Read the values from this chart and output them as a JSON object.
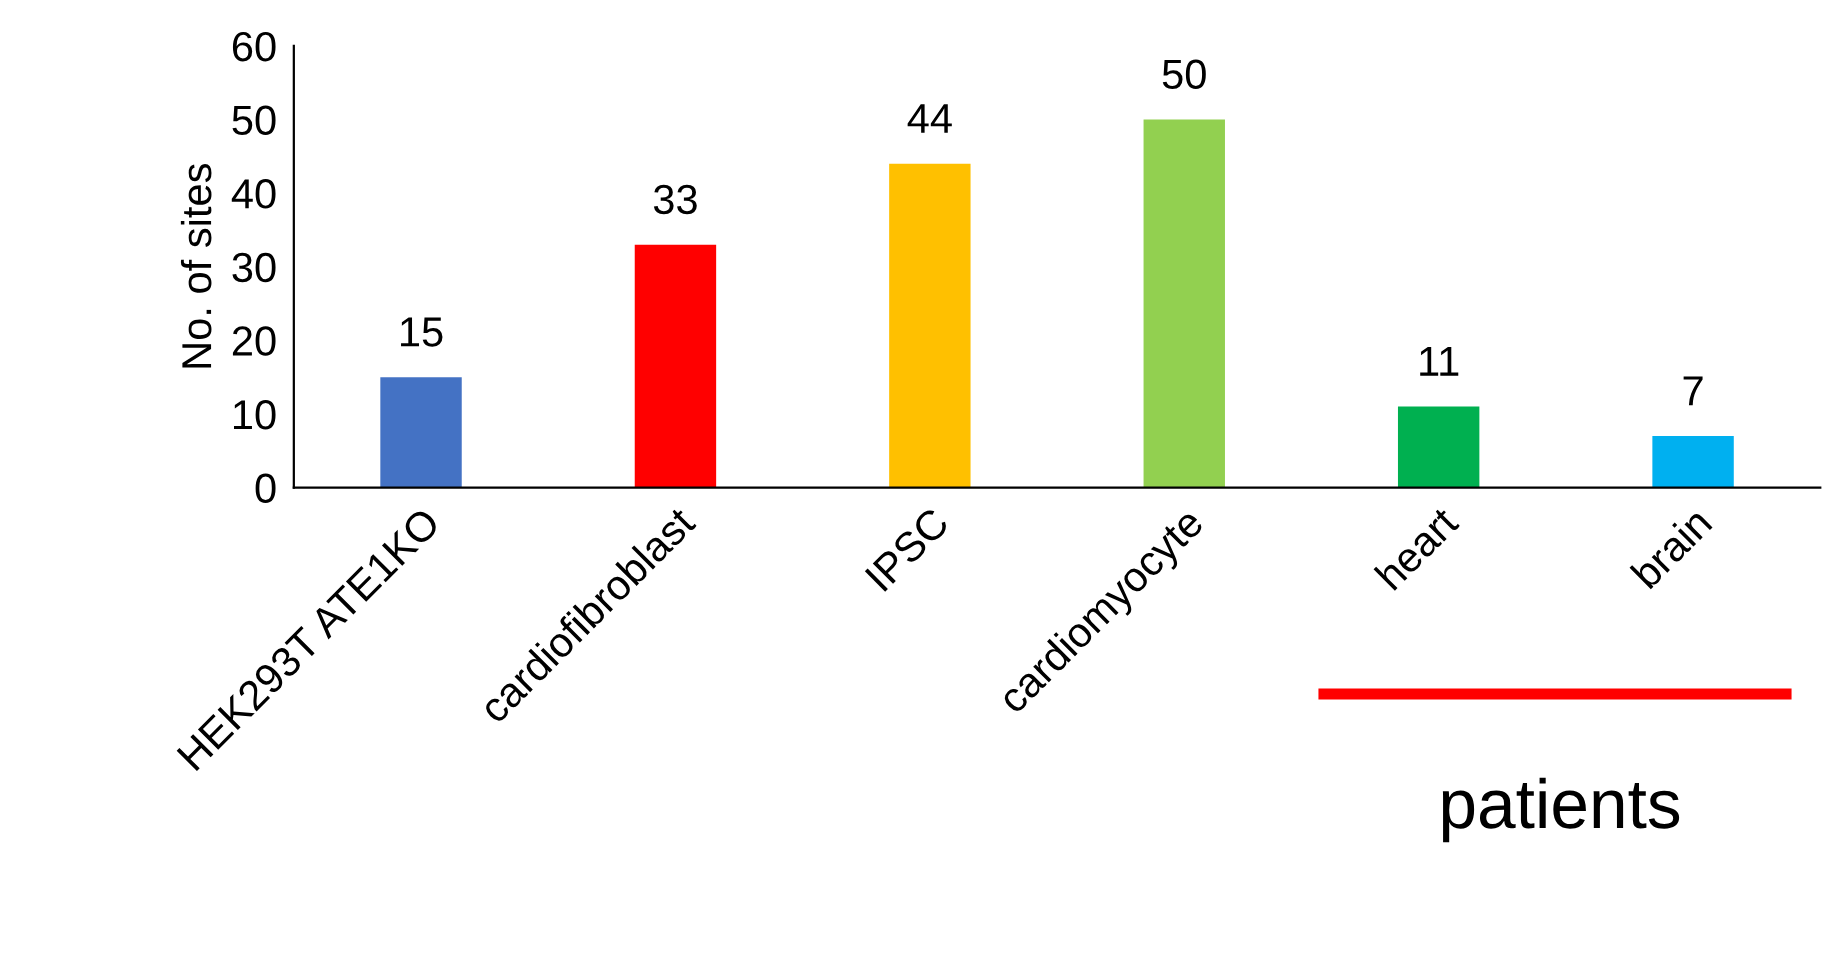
{
  "chart_data": {
    "type": "bar",
    "ylabel": "No. of sites",
    "categories": [
      "HEK293T ATE1KO",
      "cardiofibroblast",
      "IPSC",
      "cardiomyocyte",
      "heart",
      "brain"
    ],
    "values": [
      15,
      33,
      44,
      50,
      11,
      7
    ],
    "colors": [
      "#4472c4",
      "#ff0000",
      "#ffc000",
      "#92d050",
      "#00b050",
      "#00b0f0"
    ],
    "ylim": [
      0,
      60
    ],
    "yticks": [
      0,
      10,
      20,
      30,
      40,
      50,
      60
    ],
    "grid": false,
    "legend": false,
    "data_labels": true,
    "annotations": [
      "patients"
    ]
  }
}
